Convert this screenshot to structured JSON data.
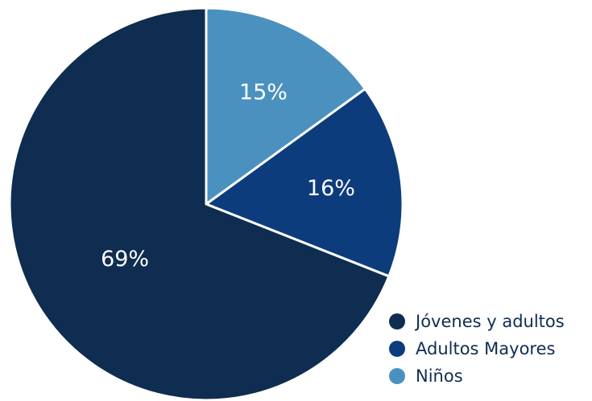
{
  "chart_data": {
    "type": "pie",
    "title": "",
    "slices": [
      {
        "name": "Niños",
        "value": 15,
        "label": "15%",
        "color": "#4b91bf"
      },
      {
        "name": "Adultos Mayores",
        "value": 16,
        "label": "16%",
        "color": "#0d3c7c"
      },
      {
        "name": "Jóvenes y adultos",
        "value": 69,
        "label": "69%",
        "color": "#0f2d50"
      }
    ],
    "legend": {
      "placement": "bottom-right",
      "items": [
        {
          "label": "Jóvenes y adultos",
          "color": "#0f2d50"
        },
        {
          "label": "Adultos Mayores",
          "color": "#0d3c7c"
        },
        {
          "label": "Niños",
          "color": "#4b91bf"
        }
      ]
    }
  }
}
